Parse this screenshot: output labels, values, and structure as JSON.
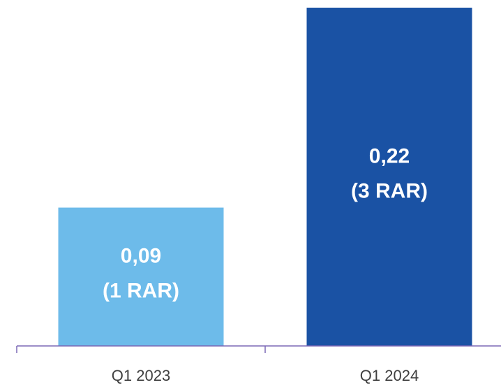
{
  "chart_data": {
    "type": "bar",
    "categories": [
      "Q1 2023",
      "Q1 2024"
    ],
    "values": [
      0.09,
      0.22
    ],
    "value_labels": [
      "0,09",
      "0,22"
    ],
    "value_notes": [
      "(1 RAR)",
      "(3 RAR)"
    ],
    "colors": [
      "#6dbbea",
      "#1a52a4"
    ]
  }
}
